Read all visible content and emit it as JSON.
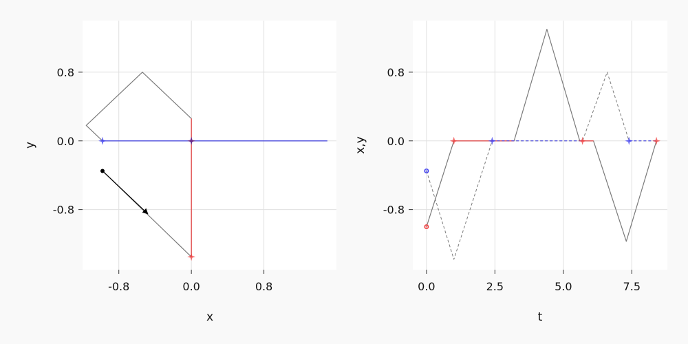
{
  "colors": {
    "background": "#f9f9f9",
    "panel": "#ffffff",
    "grid": "#e0e0e0",
    "path": "#7a7a7a",
    "red": "#f03c3c",
    "blue": "#3c3cf0",
    "black": "#000000"
  },
  "chart_data": [
    {
      "type": "line",
      "xlabel": "x",
      "ylabel": "y",
      "xlim": [
        -1.2,
        1.6
      ],
      "ylim": [
        -1.5,
        1.4
      ],
      "xticks": [
        -0.8,
        0.0,
        0.8
      ],
      "yticks": [
        -0.8,
        0.0,
        0.8
      ],
      "xtick_labels": [
        "-0.8",
        "0.0",
        "0.8"
      ],
      "ytick_labels": [
        "-0.8",
        "0.0",
        "0.8"
      ],
      "grid": true,
      "series": [
        {
          "style": "gray-path",
          "points": [
            [
              -0.98,
              -0.35
            ],
            [
              0.0,
              -1.35
            ],
            [
              0.0,
              0.26
            ],
            [
              -0.54,
              0.8
            ],
            [
              -1.16,
              0.18
            ],
            [
              -0.98,
              0.0
            ],
            [
              1.5,
              0.0
            ]
          ]
        },
        {
          "style": "red-line",
          "points": [
            [
              0.0,
              -1.35
            ],
            [
              0.0,
              0.26
            ]
          ]
        },
        {
          "style": "blue-line",
          "points": [
            [
              -0.98,
              0.0
            ],
            [
              1.5,
              0.0
            ]
          ]
        },
        {
          "style": "black-arrow",
          "points": [
            [
              -0.98,
              -0.35
            ],
            [
              -0.48,
              -0.85
            ]
          ]
        }
      ],
      "markers": [
        {
          "style": "black-dot",
          "x": -0.98,
          "y": -0.35
        },
        {
          "style": "red-star",
          "x": 0.0,
          "y": -1.35
        },
        {
          "style": "blue-star",
          "x": -0.98,
          "y": 0.0
        },
        {
          "style": "purple-star",
          "x": 0.0,
          "y": 0.0
        }
      ]
    },
    {
      "type": "line",
      "xlabel": "t",
      "ylabel": "x,y",
      "xlim": [
        -0.5,
        8.8
      ],
      "ylim": [
        -1.5,
        1.4
      ],
      "xticks": [
        0.0,
        2.5,
        5.0,
        7.5
      ],
      "yticks": [
        -0.8,
        0.0,
        0.8
      ],
      "xtick_labels": [
        "0.0",
        "2.5",
        "5.0",
        "7.5"
      ],
      "ytick_labels": [
        "-0.8",
        "0.0",
        "0.8"
      ],
      "grid": true,
      "series": [
        {
          "style": "gray-solid",
          "points": [
            [
              0.0,
              -1.0
            ],
            [
              1.0,
              0.0
            ],
            [
              3.2,
              0.0
            ],
            [
              4.4,
              1.3
            ],
            [
              5.6,
              0.0
            ],
            [
              6.1,
              0.0
            ],
            [
              7.3,
              -1.17
            ],
            [
              8.4,
              0.0
            ]
          ]
        },
        {
          "style": "gray-dashed",
          "points": [
            [
              0.0,
              -0.35
            ],
            [
              1.0,
              -1.38
            ],
            [
              2.4,
              0.0
            ],
            [
              5.7,
              0.0
            ],
            [
              6.6,
              0.8
            ],
            [
              7.4,
              0.0
            ],
            [
              8.4,
              0.0
            ]
          ]
        },
        {
          "style": "red-line",
          "points": [
            [
              1.0,
              0.0
            ],
            [
              3.2,
              0.0
            ]
          ]
        },
        {
          "style": "red-line",
          "points": [
            [
              5.6,
              0.0
            ],
            [
              6.1,
              0.0
            ]
          ]
        },
        {
          "style": "blue-dashed",
          "points": [
            [
              2.4,
              0.0
            ],
            [
              5.7,
              0.0
            ]
          ]
        },
        {
          "style": "blue-dashed",
          "points": [
            [
              7.4,
              0.0
            ],
            [
              8.4,
              0.0
            ]
          ]
        }
      ],
      "markers": [
        {
          "style": "red-circle",
          "x": 0.0,
          "y": -1.0
        },
        {
          "style": "blue-circle",
          "x": 0.0,
          "y": -0.35
        },
        {
          "style": "red-star",
          "x": 1.0,
          "y": 0.0
        },
        {
          "style": "blue-star",
          "x": 2.4,
          "y": 0.0
        },
        {
          "style": "red-star",
          "x": 5.7,
          "y": 0.0
        },
        {
          "style": "blue-star",
          "x": 7.4,
          "y": 0.0
        },
        {
          "style": "red-star",
          "x": 8.4,
          "y": 0.0
        }
      ]
    }
  ]
}
